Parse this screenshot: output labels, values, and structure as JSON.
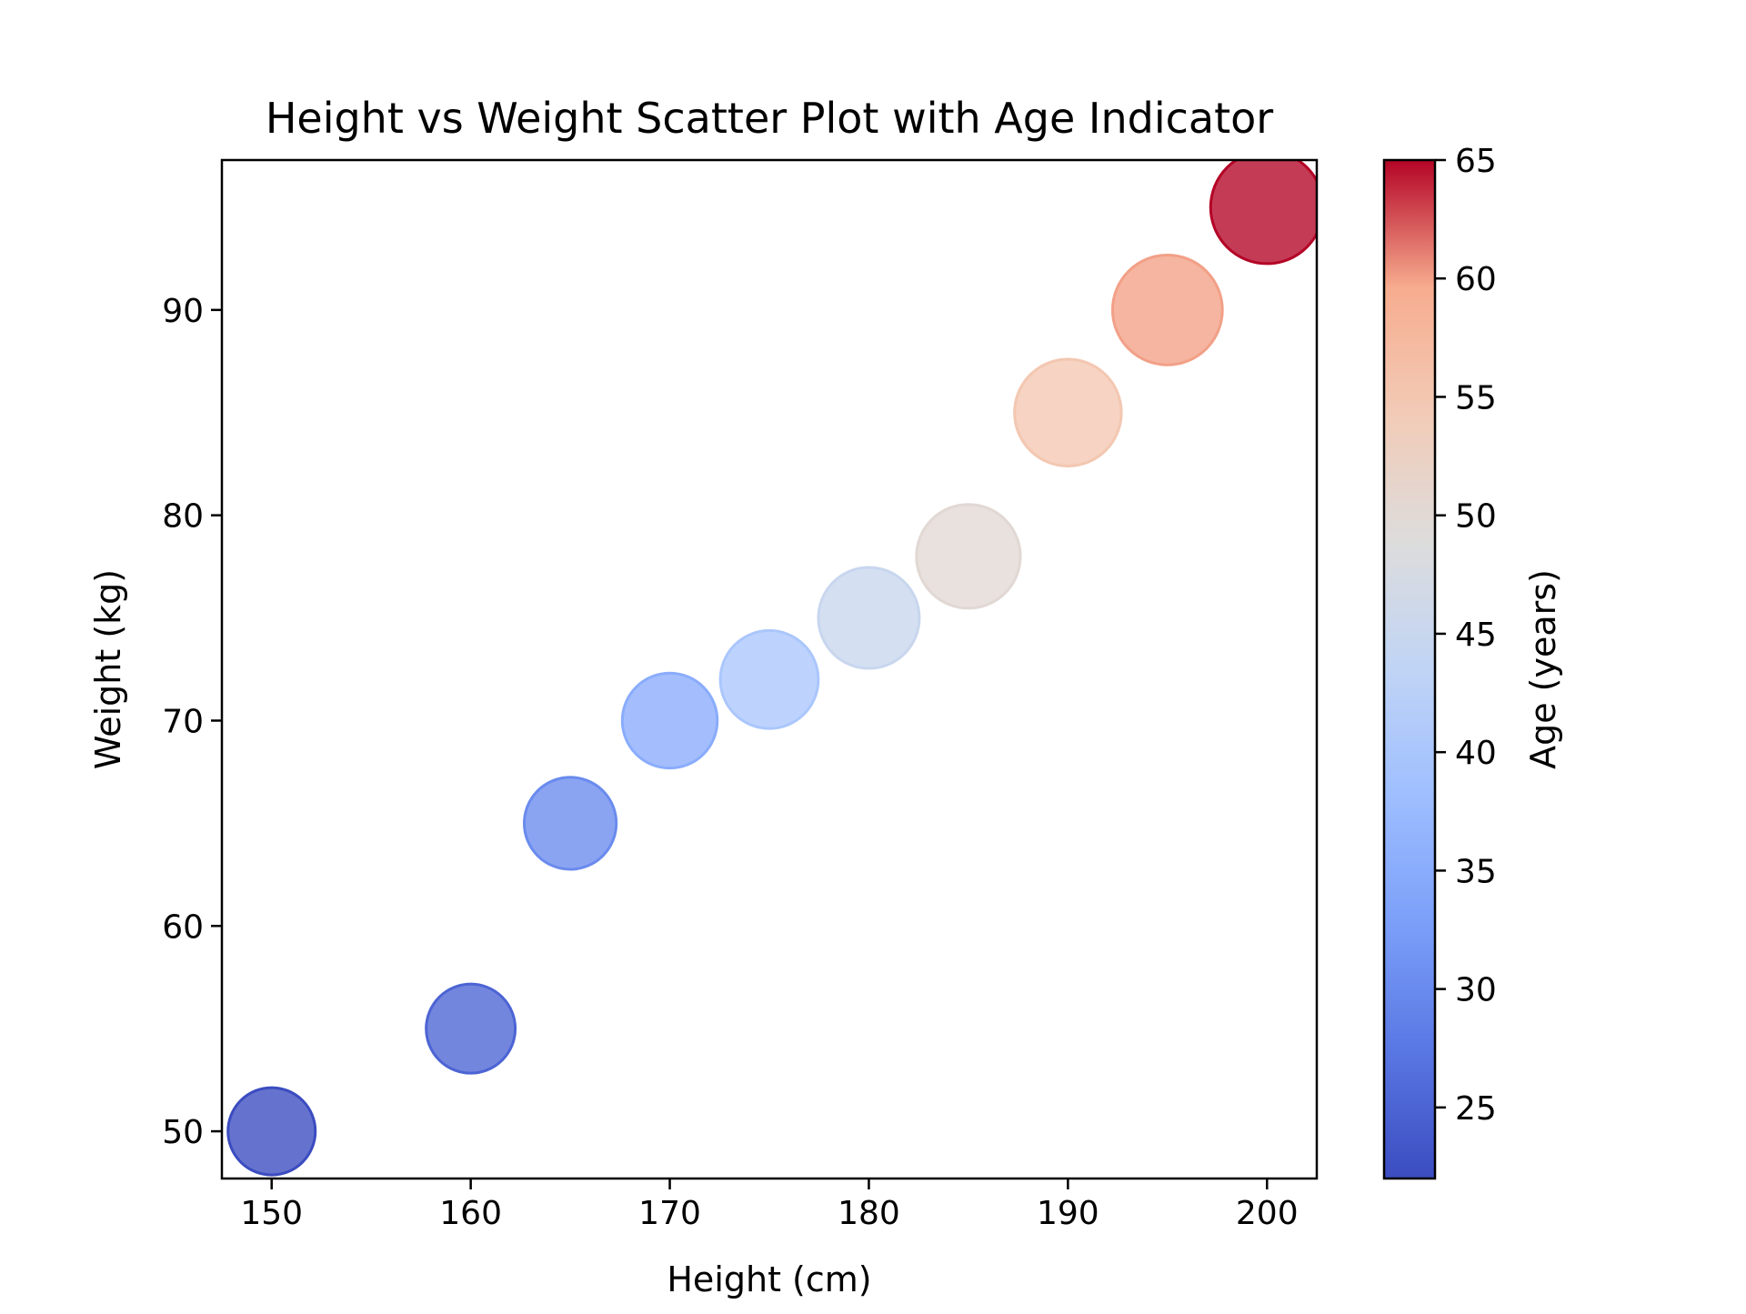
{
  "chart_data": {
    "type": "scatter",
    "title": "Height vs Weight Scatter Plot with Age Indicator",
    "xlabel": "Height (cm)",
    "ylabel": "Weight (kg)",
    "xlim": [
      147.5,
      202.5
    ],
    "ylim": [
      47.7,
      97.3
    ],
    "xticks": [
      150,
      160,
      170,
      180,
      190,
      200
    ],
    "yticks": [
      50,
      60,
      70,
      80,
      90
    ],
    "grid": false,
    "colormap": "coolwarm",
    "colorbar": {
      "label": "Age (years)",
      "range": [
        22,
        65
      ],
      "ticks": [
        25,
        30,
        35,
        40,
        45,
        50,
        55,
        60,
        65
      ]
    },
    "points": [
      {
        "x": 150,
        "y": 50,
        "age": 22
      },
      {
        "x": 160,
        "y": 55,
        "age": 25
      },
      {
        "x": 165,
        "y": 65,
        "age": 30
      },
      {
        "x": 170,
        "y": 70,
        "age": 35
      },
      {
        "x": 175,
        "y": 72,
        "age": 40
      },
      {
        "x": 180,
        "y": 75,
        "age": 45
      },
      {
        "x": 185,
        "y": 78,
        "age": 50
      },
      {
        "x": 190,
        "y": 85,
        "age": 55
      },
      {
        "x": 195,
        "y": 90,
        "age": 60
      },
      {
        "x": 200,
        "y": 95,
        "age": 65
      }
    ]
  }
}
